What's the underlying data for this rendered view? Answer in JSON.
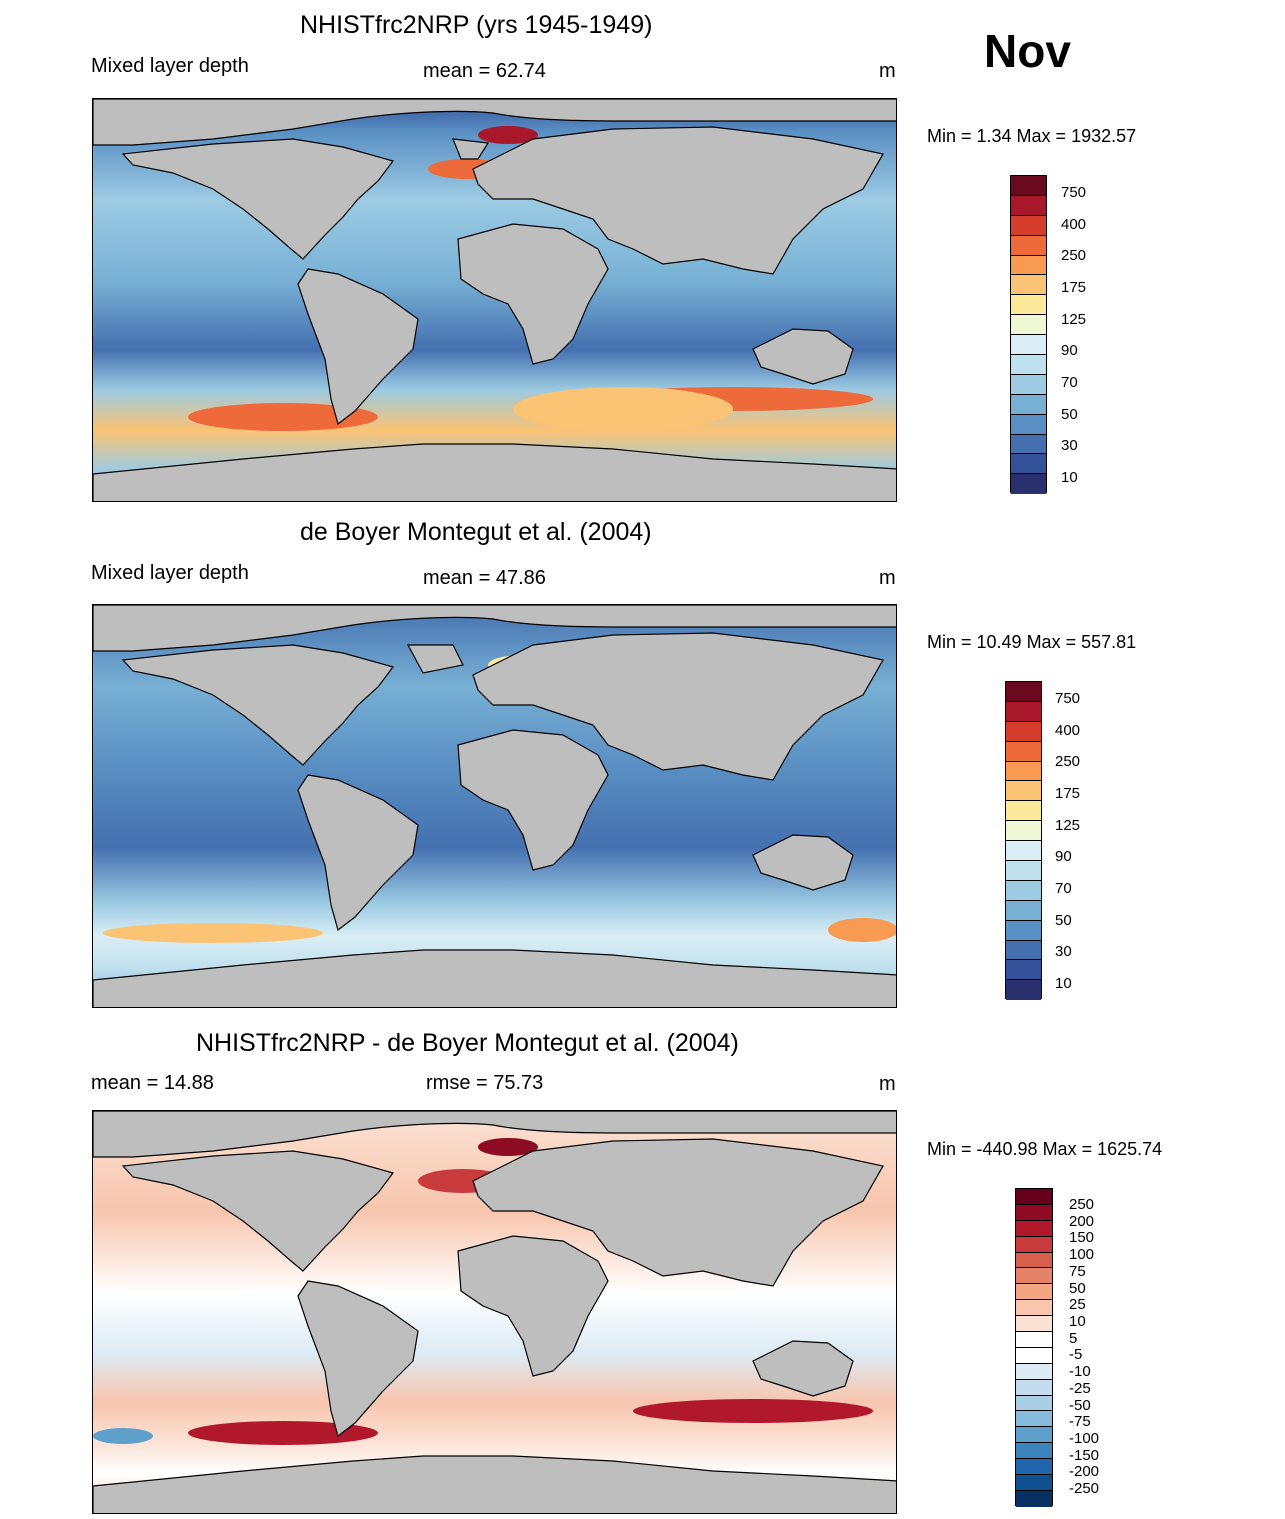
{
  "month": "Nov",
  "panels": [
    {
      "title": "NHISTfrc2NRP (yrs 1945-1949)",
      "left_label": "Mixed layer depth",
      "center_label": "mean =  62.74",
      "units": "m",
      "minmax": "Min =   1.34 Max = 1932.57"
    },
    {
      "title": "de Boyer Montegut et al. (2004)",
      "left_label": "Mixed layer depth",
      "center_label": "mean =  47.86",
      "units": "m",
      "minmax": "Min =  10.49 Max = 557.81"
    },
    {
      "title": "NHISTfrc2NRP - de Boyer Montegut et al. (2004)",
      "left_label": "mean =  14.88",
      "center_label": "rmse =  75.73",
      "units": "m",
      "minmax": "Min = -440.98 Max = 1625.74"
    }
  ],
  "colorbars": {
    "depth": {
      "labels": [
        "750",
        "400",
        "250",
        "175",
        "125",
        "90",
        "70",
        "50",
        "30",
        "10"
      ],
      "colors": [
        "#6b0a1e",
        "#a8172a",
        "#d43d2a",
        "#ee6a3a",
        "#f89a52",
        "#fbc374",
        "#fde99a",
        "#eff7d5",
        "#dbeef5",
        "#bfe0ee",
        "#9ccbe3",
        "#78b0d4",
        "#5a8fc3",
        "#4470b0",
        "#33529a",
        "#2a2f6e"
      ]
    },
    "diff": {
      "labels": [
        "250",
        "200",
        "150",
        "100",
        "75",
        "50",
        "25",
        "10",
        "5",
        "-5",
        "-10",
        "-25",
        "-50",
        "-75",
        "-100",
        "-150",
        "-200",
        "-250"
      ],
      "colors": [
        "#67001f",
        "#8e0b24",
        "#b2182b",
        "#c83a3c",
        "#d6604d",
        "#e58267",
        "#f4a582",
        "#f8c5ad",
        "#fbe2d5",
        "#ffffff",
        "#ffffff",
        "#dcebf4",
        "#c4dced",
        "#a9cfe5",
        "#86bbdb",
        "#5e9fcb",
        "#3d84bc",
        "#2166ac",
        "#11508f",
        "#053061"
      ]
    }
  }
}
